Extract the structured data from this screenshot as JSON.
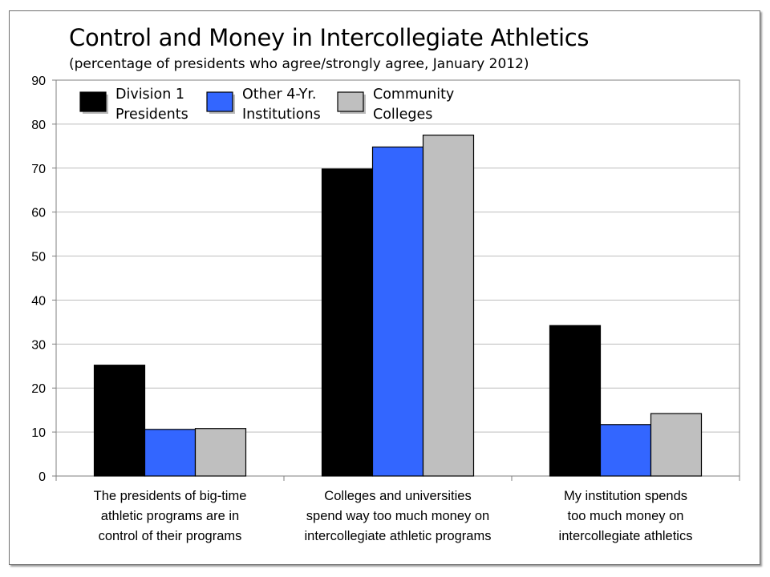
{
  "chart_data": {
    "type": "bar",
    "title": "Control and Money in Intercollegiate Athletics",
    "subtitle": "(percentage of presidents who agree/strongly agree, January 2012)",
    "xlabel": "",
    "ylabel": "",
    "ylim": [
      0,
      90
    ],
    "yticks": [
      0,
      10,
      20,
      30,
      40,
      50,
      60,
      70,
      80,
      90
    ],
    "grid": true,
    "legend_position": "top-left",
    "categories": [
      [
        "The presidents of big-time",
        "athletic programs are in",
        "control of their programs"
      ],
      [
        "Colleges and universities",
        "spend way too much money on",
        "intercollegiate athletic programs"
      ],
      [
        "My institution spends",
        "too much money on",
        "intercollegiate athletics"
      ]
    ],
    "series": [
      {
        "name": [
          "Division 1",
          "Presidents"
        ],
        "color": "#000000",
        "values": [
          25.2,
          69.8,
          34.2
        ]
      },
      {
        "name": [
          "Other 4-Yr.",
          "Institutions"
        ],
        "color": "#3366ff",
        "values": [
          10.6,
          74.8,
          11.7
        ]
      },
      {
        "name": [
          "Community",
          "Colleges"
        ],
        "color": "#bfbfbf",
        "values": [
          10.8,
          77.5,
          14.2
        ]
      }
    ]
  }
}
